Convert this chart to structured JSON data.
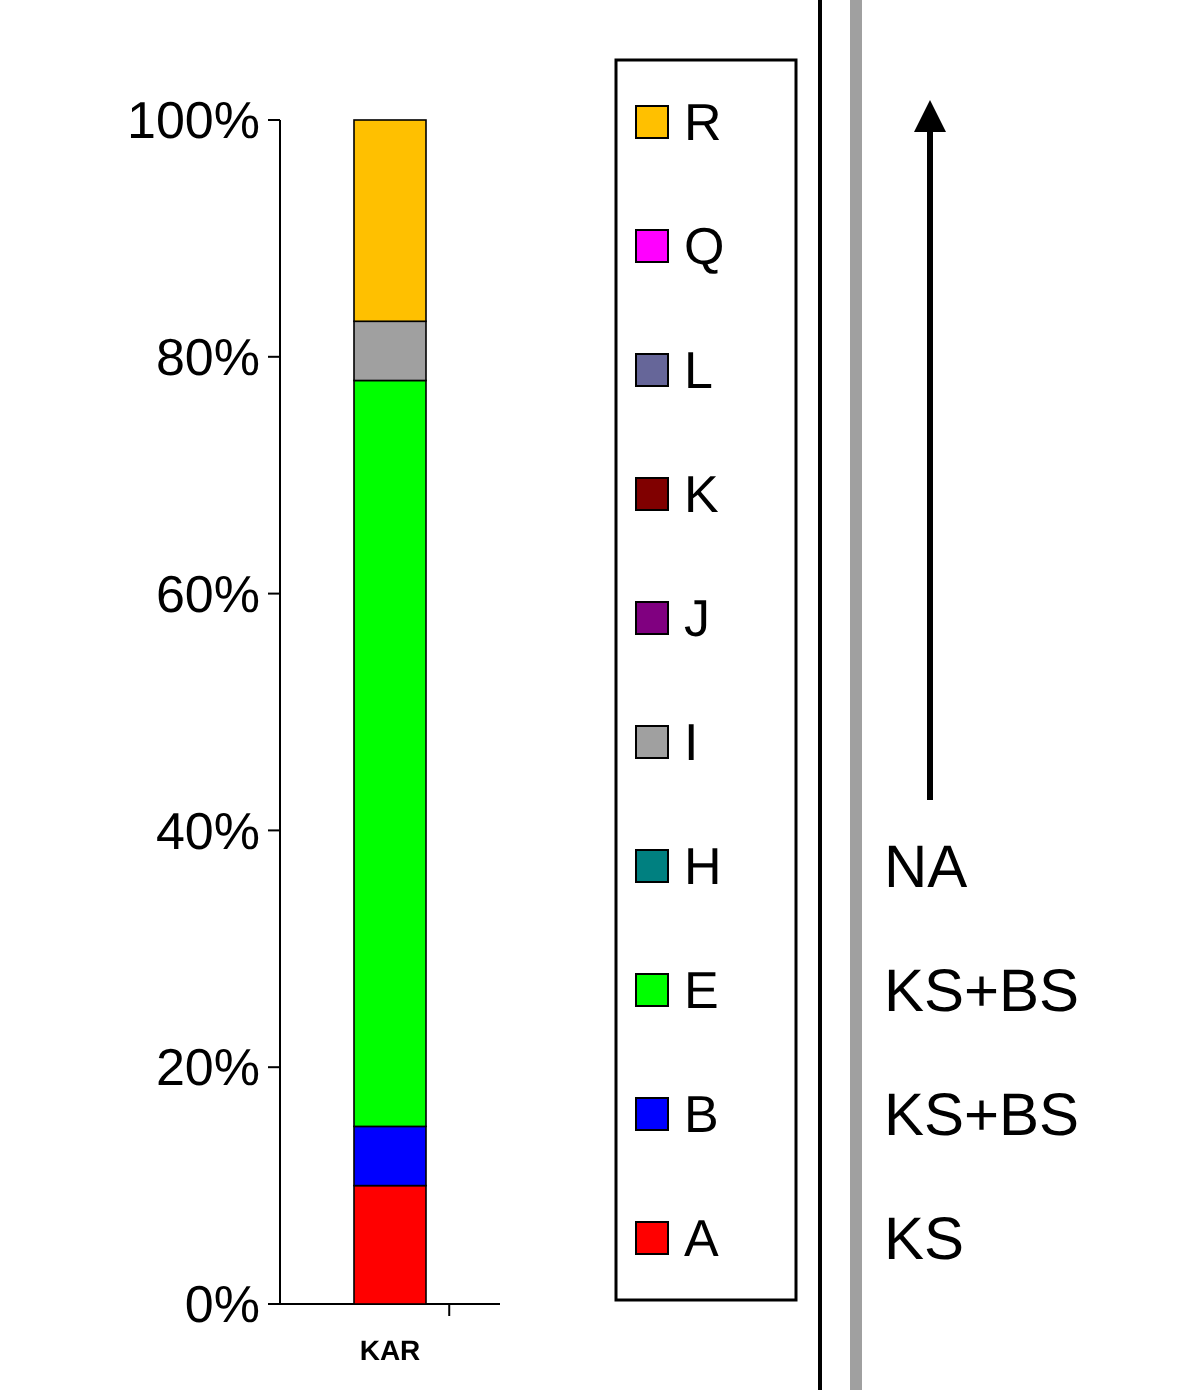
{
  "chart_data": {
    "type": "bar",
    "stacked": true,
    "categories": [
      "KAR"
    ],
    "series": [
      {
        "name": "A",
        "color": "#ff0000",
        "values": [
          10
        ]
      },
      {
        "name": "B",
        "color": "#0000ff",
        "values": [
          5
        ]
      },
      {
        "name": "E",
        "color": "#00ff00",
        "values": [
          63
        ]
      },
      {
        "name": "H",
        "color": "#008080",
        "values": [
          0
        ]
      },
      {
        "name": "I",
        "color": "#a0a0a0",
        "values": [
          5
        ]
      },
      {
        "name": "J",
        "color": "#800080",
        "values": [
          0
        ]
      },
      {
        "name": "K",
        "color": "#800000",
        "values": [
          0
        ]
      },
      {
        "name": "L",
        "color": "#666699",
        "values": [
          0
        ]
      },
      {
        "name": "Q",
        "color": "#ff00ff",
        "values": [
          0
        ]
      },
      {
        "name": "R",
        "color": "#ffc000",
        "values": [
          17
        ]
      }
    ],
    "ylim": [
      0,
      100
    ],
    "yticks": [
      {
        "value": 0,
        "label": "0%"
      },
      {
        "value": 20,
        "label": "20%"
      },
      {
        "value": 40,
        "label": "40%"
      },
      {
        "value": 60,
        "label": "60%"
      },
      {
        "value": 80,
        "label": "80%"
      },
      {
        "value": 100,
        "label": "100%"
      }
    ],
    "legend": "right",
    "annotations": [
      "NA",
      "KS+BS",
      "KS+BS",
      "KS"
    ]
  }
}
